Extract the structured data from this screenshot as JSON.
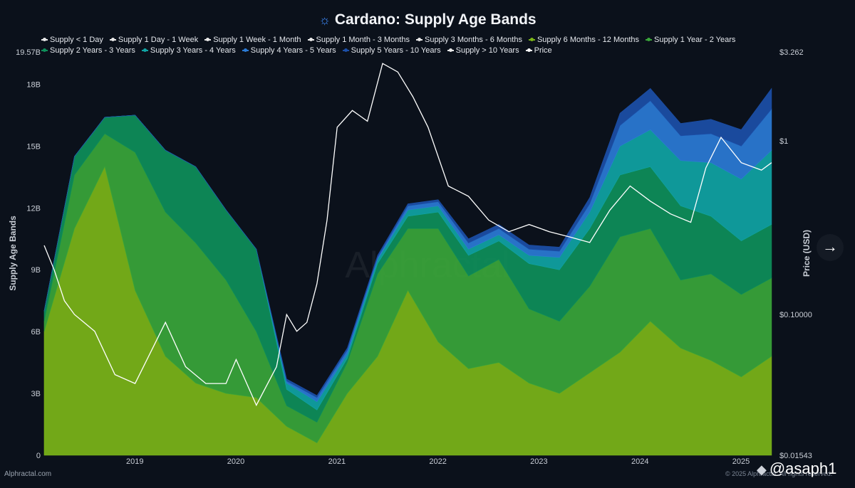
{
  "title": "Cardano: Supply Age Bands",
  "title_icon": "cardano-logo-icon",
  "footer_left": "Alphractal.com",
  "footer_right": "© 2025 Alphractal. All rights reserved.",
  "watermark": "Alphractal",
  "brand_handle": "@asaph1",
  "brand_icon": "binance-diamond-icon",
  "nav_icon": "arrow-right-icon",
  "chart_data": {
    "type": "area",
    "title": "Cardano: Supply Age Bands",
    "ylabel": "Supply Age Bands",
    "y2label": "Price (USD)",
    "ylim": [
      0,
      19.57
    ],
    "y2lim": [
      0.01543,
      3.262
    ],
    "y2scale": "log",
    "yticks": [
      "0",
      "3B",
      "6B",
      "9B",
      "12B",
      "15B",
      "18B",
      "19.57B"
    ],
    "y2ticks": [
      "$0.01543",
      "$0.10000",
      "$1",
      "$3.262"
    ],
    "xticks": [
      "2019",
      "2020",
      "2021",
      "2022",
      "2023",
      "2024",
      "2025"
    ],
    "legend_position": "top",
    "grid": false,
    "series": [
      {
        "name": "Supply < 1 Day",
        "color": "#e8e8e8"
      },
      {
        "name": "Supply 1 Day - 1 Week",
        "color": "#e8e8e8"
      },
      {
        "name": "Supply 1 Week - 1 Month",
        "color": "#e8e8e8"
      },
      {
        "name": "Supply 1 Month - 3 Months",
        "color": "#e8e8e8"
      },
      {
        "name": "Supply 3 Months - 6 Months",
        "color": "#e8e8e8"
      },
      {
        "name": "Supply 6 Months - 12 Months",
        "color": "#7cb518"
      },
      {
        "name": "Supply 1 Year - 2 Years",
        "color": "#3aa63a"
      },
      {
        "name": "Supply 2 Years - 3 Years",
        "color": "#0e8f5a"
      },
      {
        "name": "Supply 3 Years - 4 Years",
        "color": "#10a4a4"
      },
      {
        "name": "Supply 4 Years - 5 Years",
        "color": "#2b7bd6"
      },
      {
        "name": "Supply 5 Years - 10 Years",
        "color": "#1c4fa8"
      },
      {
        "name": "Supply > 10 Years",
        "color": "#e8e8e8"
      },
      {
        "name": "Price",
        "color": "#ffffff"
      }
    ],
    "x": [
      2018.3,
      2018.6,
      2018.9,
      2019.2,
      2019.5,
      2019.8,
      2020.1,
      2020.4,
      2020.7,
      2021.0,
      2021.3,
      2021.6,
      2021.9,
      2022.2,
      2022.5,
      2022.8,
      2023.1,
      2023.4,
      2023.7,
      2024.0,
      2024.3,
      2024.6,
      2024.9,
      2025.2,
      2025.5
    ],
    "stacks": [
      {
        "name": "Supply 6 Months - 12 Months",
        "values": [
          6.0,
          11.0,
          14.0,
          8.0,
          4.8,
          3.5,
          3.0,
          2.8,
          1.4,
          0.6,
          3.0,
          4.8,
          8.0,
          5.5,
          4.2,
          4.5,
          3.5,
          3.0,
          4.0,
          5.0,
          6.5,
          5.2,
          4.6,
          3.8,
          4.8
        ]
      },
      {
        "name": "Supply 1 Year - 2 Years",
        "values": [
          0.5,
          2.6,
          1.6,
          6.7,
          7.0,
          6.8,
          5.5,
          3.2,
          1.0,
          1.0,
          1.5,
          4.0,
          3.0,
          5.5,
          4.5,
          5.0,
          3.6,
          3.5,
          4.2,
          5.6,
          4.5,
          3.3,
          4.2,
          4.0,
          3.8
        ]
      },
      {
        "name": "Supply 2 Years - 3 Years",
        "values": [
          0.5,
          0.9,
          0.8,
          1.8,
          3.0,
          3.7,
          3.4,
          4.0,
          0.8,
          0.6,
          0.2,
          0.5,
          0.6,
          0.8,
          1.0,
          0.9,
          2.2,
          2.5,
          2.8,
          3.0,
          3.0,
          3.6,
          2.8,
          2.6,
          2.6
        ]
      },
      {
        "name": "Supply 3 Years - 4 Years",
        "values": [
          0,
          0,
          0,
          0,
          0,
          0,
          0,
          0,
          0.3,
          0.4,
          0.2,
          0.2,
          0.3,
          0.3,
          0.3,
          0.3,
          0.4,
          0.6,
          0.8,
          1.4,
          1.8,
          2.2,
          2.6,
          3.0,
          3.6
        ]
      },
      {
        "name": "Supply 4 Years - 5 Years",
        "values": [
          0,
          0,
          0,
          0,
          0,
          0,
          0,
          0,
          0.1,
          0.2,
          0.2,
          0.1,
          0.2,
          0.2,
          0.3,
          0.3,
          0.3,
          0.3,
          0.4,
          1.0,
          1.4,
          1.2,
          1.4,
          1.6,
          2.0
        ]
      },
      {
        "name": "Supply 5 Years - 10 Years",
        "values": [
          0,
          0,
          0,
          0,
          0,
          0,
          0,
          0,
          0.1,
          0.1,
          0.1,
          0.1,
          0.1,
          0.1,
          0.2,
          0.2,
          0.2,
          0.2,
          0.3,
          0.6,
          0.6,
          0.6,
          0.7,
          0.8,
          1.0
        ]
      }
    ],
    "price": {
      "x": [
        2018.3,
        2018.4,
        2018.5,
        2018.6,
        2018.8,
        2019.0,
        2019.2,
        2019.35,
        2019.5,
        2019.7,
        2019.9,
        2020.1,
        2020.2,
        2020.4,
        2020.6,
        2020.7,
        2020.8,
        2020.9,
        2021.0,
        2021.1,
        2021.2,
        2021.35,
        2021.5,
        2021.65,
        2021.8,
        2021.95,
        2022.1,
        2022.3,
        2022.5,
        2022.7,
        2022.9,
        2023.1,
        2023.3,
        2023.5,
        2023.7,
        2023.9,
        2024.1,
        2024.3,
        2024.5,
        2024.7,
        2024.85,
        2025.0,
        2025.2,
        2025.4,
        2025.5
      ],
      "values": [
        0.25,
        0.18,
        0.12,
        0.1,
        0.08,
        0.045,
        0.04,
        0.06,
        0.09,
        0.05,
        0.04,
        0.04,
        0.055,
        0.03,
        0.05,
        0.1,
        0.08,
        0.09,
        0.15,
        0.35,
        1.2,
        1.5,
        1.3,
        2.8,
        2.5,
        1.8,
        1.2,
        0.55,
        0.48,
        0.35,
        0.3,
        0.33,
        0.3,
        0.28,
        0.26,
        0.4,
        0.55,
        0.45,
        0.38,
        0.34,
        0.7,
        1.05,
        0.75,
        0.68,
        0.75
      ]
    }
  }
}
